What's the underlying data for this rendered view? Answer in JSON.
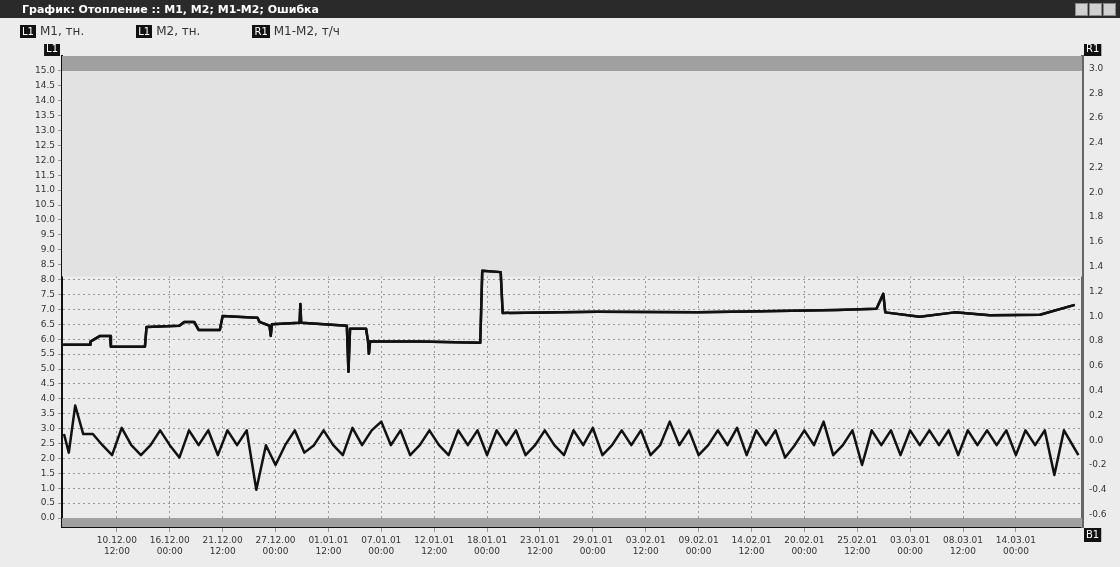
{
  "chart_data": {
    "type": "line",
    "title": "График: Отопление :: M1, M2; M1-M2; Ошибка",
    "legend": "top left",
    "grid": true,
    "line_style": "solid",
    "marker": "none",
    "annotations": [
      "L1",
      "R1",
      "B1"
    ],
    "xlim": [
      "2000-12-04T19:00",
      "2001-03-20T21:00"
    ],
    "xticks": [
      {
        "value": "2000-12-10T12:00",
        "label": "10.12.00 12:00"
      },
      {
        "value": "2000-12-16T00:00",
        "label": "16.12.00 00:00"
      },
      {
        "value": "2000-12-21T12:00",
        "label": "21.12.00 12:00"
      },
      {
        "value": "2000-12-27T00:00",
        "label": "27.12.00 00:00"
      },
      {
        "value": "2001-01-01T12:00",
        "label": "01.01.01 12:00"
      },
      {
        "value": "2001-01-07T00:00",
        "label": "07.01.01 00:00"
      },
      {
        "value": "2001-01-12T12:00",
        "label": "12.01.01 12:00"
      },
      {
        "value": "2001-01-18T00:00",
        "label": "18.01.01 00:00"
      },
      {
        "value": "2001-01-23T12:00",
        "label": "23.01.01 12:00"
      },
      {
        "value": "2001-01-29T00:00",
        "label": "29.01.01 00:00"
      },
      {
        "value": "2001-02-03T12:00",
        "label": "03.02.01 12:00"
      },
      {
        "value": "2001-02-09T00:00",
        "label": "09.02.01 00:00"
      },
      {
        "value": "2001-02-14T12:00",
        "label": "14.02.01 12:00"
      },
      {
        "value": "2001-02-20T00:00",
        "label": "20.02.01 00:00"
      },
      {
        "value": "2001-02-25T12:00",
        "label": "25.02.01 12:00"
      },
      {
        "value": "2001-03-03T00:00",
        "label": "03.03.01 00:00"
      },
      {
        "value": "2001-03-08T12:00",
        "label": "08.03.01 12:00"
      },
      {
        "value": "2001-03-14T00:00",
        "label": "14.03.01 00:00"
      }
    ],
    "ylim": [
      -0.3,
      15.5
    ],
    "yticks": [
      {
        "value": 0,
        "label": "0.0"
      },
      {
        "value": 0.5,
        "label": "0.5"
      },
      {
        "value": 1,
        "label": "1.0"
      },
      {
        "value": 1.5,
        "label": "1.5"
      },
      {
        "value": 2,
        "label": "2.0"
      },
      {
        "value": 2.5,
        "label": "2.5"
      },
      {
        "value": 3,
        "label": "3.0"
      },
      {
        "value": 3.5,
        "label": "3.5"
      },
      {
        "value": 4,
        "label": "4.0"
      },
      {
        "value": 4.5,
        "label": "4.5"
      },
      {
        "value": 5,
        "label": "5.0"
      },
      {
        "value": 5.5,
        "label": "5.5"
      },
      {
        "value": 6,
        "label": "6.0"
      },
      {
        "value": 6.5,
        "label": "6.5"
      },
      {
        "value": 7,
        "label": "7.0"
      },
      {
        "value": 7.5,
        "label": "7.5"
      },
      {
        "value": 8,
        "label": "8.0"
      },
      {
        "value": 8.5,
        "label": "8.5"
      },
      {
        "value": 9,
        "label": "9.0"
      },
      {
        "value": 9.5,
        "label": "9.5"
      },
      {
        "value": 10,
        "label": "10.0"
      },
      {
        "value": 10.5,
        "label": "10.5"
      },
      {
        "value": 11,
        "label": "11.0"
      },
      {
        "value": 11.5,
        "label": "11.5"
      },
      {
        "value": 12,
        "label": "12.0"
      },
      {
        "value": 12.5,
        "label": "12.5"
      },
      {
        "value": 13,
        "label": "13.0"
      },
      {
        "value": 13.5,
        "label": "13.5"
      },
      {
        "value": 14,
        "label": "14.0"
      },
      {
        "value": 14.5,
        "label": "14.5"
      },
      {
        "value": 15,
        "label": "15.0"
      }
    ],
    "y2lim": [
      -0.7,
      3.1
    ],
    "y2ticks": [
      {
        "value": -0.6,
        "label": "-0.6"
      },
      {
        "value": -0.4,
        "label": "-0.4"
      },
      {
        "value": -0.2,
        "label": "-0.2"
      },
      {
        "value": 0,
        "label": "0.0"
      },
      {
        "value": 0.2,
        "label": "0.2"
      },
      {
        "value": 0.4,
        "label": "0.4"
      },
      {
        "value": 0.6,
        "label": "0.6"
      },
      {
        "value": 0.8,
        "label": "0.8"
      },
      {
        "value": 1,
        "label": "1.0"
      },
      {
        "value": 1.2,
        "label": "1.2"
      },
      {
        "value": 1.4,
        "label": "1.4"
      },
      {
        "value": 1.6,
        "label": "1.6"
      },
      {
        "value": 1.8,
        "label": "1.8"
      },
      {
        "value": 2,
        "label": "2.0"
      },
      {
        "value": 2.2,
        "label": "2.2"
      },
      {
        "value": 2.4,
        "label": "2.4"
      },
      {
        "value": 2.6,
        "label": "2.6"
      },
      {
        "value": 2.8,
        "label": "2.8"
      },
      {
        "value": 3,
        "label": "3.0"
      }
    ],
    "bands": [
      {
        "axis": "y",
        "from": 8.1,
        "to": 15,
        "color": "#e2e2e2"
      },
      {
        "axis": "y",
        "from": 15,
        "to": 15.5,
        "color": "#a0a0a0"
      },
      {
        "axis": "y",
        "from": -0.3,
        "to": 0,
        "color": "#a0a0a0"
      }
    ],
    "series": [
      {
        "name": "M1, тн.",
        "color": "#111111",
        "x": [
          "2000-12-04T22:00",
          "2000-12-07T17:00",
          "2000-12-07T18:00",
          "2000-12-08T18:00",
          "2000-12-09T19:00",
          "2000-12-09T21:00",
          "2000-12-13T10:00",
          "2000-12-13T14:00",
          "2000-12-17T00:00",
          "2000-12-17T12:00",
          "2000-12-18T13:00",
          "2000-12-19T00:00",
          "2000-12-21T05:00",
          "2000-12-21T12:00",
          "2000-12-25T03:00",
          "2000-12-25T08:00",
          "2000-12-26T09:00",
          "2000-12-26T12:00",
          "2000-12-26T15:00",
          "2000-12-29T12:00",
          "2000-12-29T14:00",
          "2000-12-29T16:00",
          "2001-01-03T10:00",
          "2001-01-03T14:00",
          "2001-01-03T18:00",
          "2001-01-05T10:00",
          "2001-01-05T15:00",
          "2001-01-05T17:00",
          "2001-01-05T20:00",
          "2001-01-10T22:00",
          "2001-01-17T07:00",
          "2001-01-17T12:00",
          "2001-01-19T10:00",
          "2001-01-19T15:00",
          "2001-01-29T12:00",
          "2001-02-08T22:00",
          "2001-02-23T09:00",
          "2001-02-27T12:00",
          "2001-02-28T05:00",
          "2001-02-28T10:00",
          "2001-03-04T00:00",
          "2001-03-07T15:00",
          "2001-03-11T07:00",
          "2001-03-16T12:00",
          "2001-03-20T03:00"
        ],
        "values": [
          5.81,
          5.81,
          5.92,
          6.11,
          6.11,
          5.75,
          5.75,
          6.41,
          6.45,
          6.58,
          6.58,
          6.31,
          6.31,
          6.78,
          6.72,
          6.58,
          6.45,
          6.11,
          6.5,
          6.55,
          7.18,
          6.55,
          6.45,
          4.91,
          6.35,
          6.35,
          5.92,
          5.51,
          5.92,
          5.92,
          5.88,
          8.3,
          8.25,
          6.88,
          6.92,
          6.9,
          6.98,
          7.02,
          7.52,
          6.9,
          6.75,
          6.9,
          6.8,
          6.82,
          7.15
        ]
      },
      {
        "name": "M2, тн.",
        "color": "#111111",
        "x": [
          "2000-12-04T22:00",
          "2000-12-07T17:00",
          "2000-12-07T18:00",
          "2000-12-08T18:00",
          "2000-12-09T19:00",
          "2000-12-09T21:00",
          "2000-12-13T10:00",
          "2000-12-13T14:00",
          "2000-12-17T00:00",
          "2000-12-17T12:00",
          "2000-12-18T13:00",
          "2000-12-19T00:00",
          "2000-12-21T05:00",
          "2000-12-21T12:00",
          "2000-12-25T03:00",
          "2000-12-25T08:00",
          "2000-12-26T09:00",
          "2000-12-26T12:00",
          "2000-12-26T15:00",
          "2000-12-29T12:00",
          "2000-12-29T14:00",
          "2000-12-29T16:00",
          "2001-01-03T10:00",
          "2001-01-03T14:00",
          "2001-01-03T18:00",
          "2001-01-05T10:00",
          "2001-01-05T15:00",
          "2001-01-05T17:00",
          "2001-01-05T20:00",
          "2001-01-10T22:00",
          "2001-01-17T07:00",
          "2001-01-17T12:00",
          "2001-01-19T10:00",
          "2001-01-19T15:00",
          "2001-01-29T12:00",
          "2001-02-08T22:00",
          "2001-02-23T09:00",
          "2001-02-27T12:00",
          "2001-02-28T05:00",
          "2001-02-28T10:00",
          "2001-03-04T00:00",
          "2001-03-07T15:00",
          "2001-03-11T07:00",
          "2001-03-16T12:00",
          "2001-03-20T03:00"
        ],
        "values": [
          5.81,
          5.81,
          5.92,
          6.11,
          6.11,
          5.75,
          5.75,
          6.41,
          6.45,
          6.58,
          6.58,
          6.31,
          6.31,
          6.78,
          6.72,
          6.58,
          6.45,
          6.11,
          6.5,
          6.55,
          7.18,
          6.55,
          6.45,
          4.91,
          6.35,
          6.35,
          5.92,
          5.51,
          5.92,
          5.92,
          5.88,
          8.3,
          8.25,
          6.88,
          6.92,
          6.9,
          6.98,
          7.02,
          7.52,
          6.9,
          6.75,
          6.9,
          6.8,
          6.82,
          7.15
        ]
      },
      {
        "name": "M1-M2, т/ч",
        "color": "#111111",
        "axis": "y2",
        "x": [
          "2000-12-05",
          "2000-12-05T12:00",
          "2000-12-06T04:00",
          "2000-12-07",
          "2000-12-08",
          "2000-12-09",
          "2000-12-10",
          "2000-12-11",
          "2000-12-12",
          "2000-12-13",
          "2000-12-14",
          "2000-12-15",
          "2000-12-16",
          "2000-12-17",
          "2000-12-18",
          "2000-12-19",
          "2000-12-20",
          "2000-12-21",
          "2000-12-22",
          "2000-12-23",
          "2000-12-24",
          "2000-12-25",
          "2000-12-26",
          "2000-12-27",
          "2000-12-28",
          "2000-12-29",
          "2000-12-30",
          "2000-12-31",
          "2001-01-01",
          "2001-01-02",
          "2001-01-03",
          "2001-01-04",
          "2001-01-05",
          "2001-01-06",
          "2001-01-07",
          "2001-01-08",
          "2001-01-09",
          "2001-01-10",
          "2001-01-11",
          "2001-01-12",
          "2001-01-13",
          "2001-01-14",
          "2001-01-15",
          "2001-01-16",
          "2001-01-17",
          "2001-01-18",
          "2001-01-19",
          "2001-01-20",
          "2001-01-21",
          "2001-01-22",
          "2001-01-23",
          "2001-01-24",
          "2001-01-25",
          "2001-01-26",
          "2001-01-27",
          "2001-01-28",
          "2001-01-29",
          "2001-01-30",
          "2001-01-31",
          "2001-02-01",
          "2001-02-02",
          "2001-02-03",
          "2001-02-04",
          "2001-02-05",
          "2001-02-06",
          "2001-02-07",
          "2001-02-08",
          "2001-02-09",
          "2001-02-10",
          "2001-02-11",
          "2001-02-12",
          "2001-02-13",
          "2001-02-14",
          "2001-02-15",
          "2001-02-16",
          "2001-02-17",
          "2001-02-18",
          "2001-02-19",
          "2001-02-20",
          "2001-02-21",
          "2001-02-22",
          "2001-02-23",
          "2001-02-24",
          "2001-02-25",
          "2001-02-26",
          "2001-02-27",
          "2001-02-28",
          "2001-03-01",
          "2001-03-02",
          "2001-03-03",
          "2001-03-04",
          "2001-03-05",
          "2001-03-06",
          "2001-03-07",
          "2001-03-08",
          "2001-03-09",
          "2001-03-10",
          "2001-03-11",
          "2001-03-12",
          "2001-03-13",
          "2001-03-14",
          "2001-03-15",
          "2001-03-16",
          "2001-03-17",
          "2001-03-18",
          "2001-03-19",
          "2001-03-20T12:00"
        ],
        "values": [
          0.05,
          -0.1,
          0.28,
          0.05,
          0.05,
          -0.04,
          -0.12,
          0.1,
          -0.04,
          -0.12,
          -0.04,
          0.08,
          -0.04,
          -0.14,
          0.08,
          -0.04,
          0.08,
          -0.12,
          0.08,
          -0.04,
          0.08,
          -0.4,
          -0.04,
          -0.2,
          -0.04,
          0.08,
          -0.1,
          -0.04,
          0.08,
          -0.04,
          -0.12,
          0.1,
          -0.04,
          0.08,
          0.15,
          -0.04,
          0.08,
          -0.12,
          -0.04,
          0.08,
          -0.04,
          -0.12,
          0.08,
          -0.04,
          0.08,
          -0.12,
          0.08,
          -0.04,
          0.08,
          -0.12,
          -0.04,
          0.08,
          -0.04,
          -0.12,
          0.08,
          -0.04,
          0.1,
          -0.12,
          -0.04,
          0.08,
          -0.04,
          0.08,
          -0.12,
          -0.04,
          0.15,
          -0.04,
          0.08,
          -0.12,
          -0.04,
          0.08,
          -0.04,
          0.1,
          -0.12,
          0.08,
          -0.04,
          0.08,
          -0.14,
          -0.04,
          0.08,
          -0.04,
          0.15,
          -0.12,
          -0.04,
          0.08,
          -0.2,
          0.08,
          -0.04,
          0.08,
          -0.12,
          0.08,
          -0.04,
          0.08,
          -0.04,
          0.08,
          -0.12,
          0.08,
          -0.04,
          0.08,
          -0.04,
          0.08,
          -0.12,
          0.08,
          -0.04,
          0.08,
          -0.28,
          0.08,
          -0.12
        ]
      }
    ]
  }
}
